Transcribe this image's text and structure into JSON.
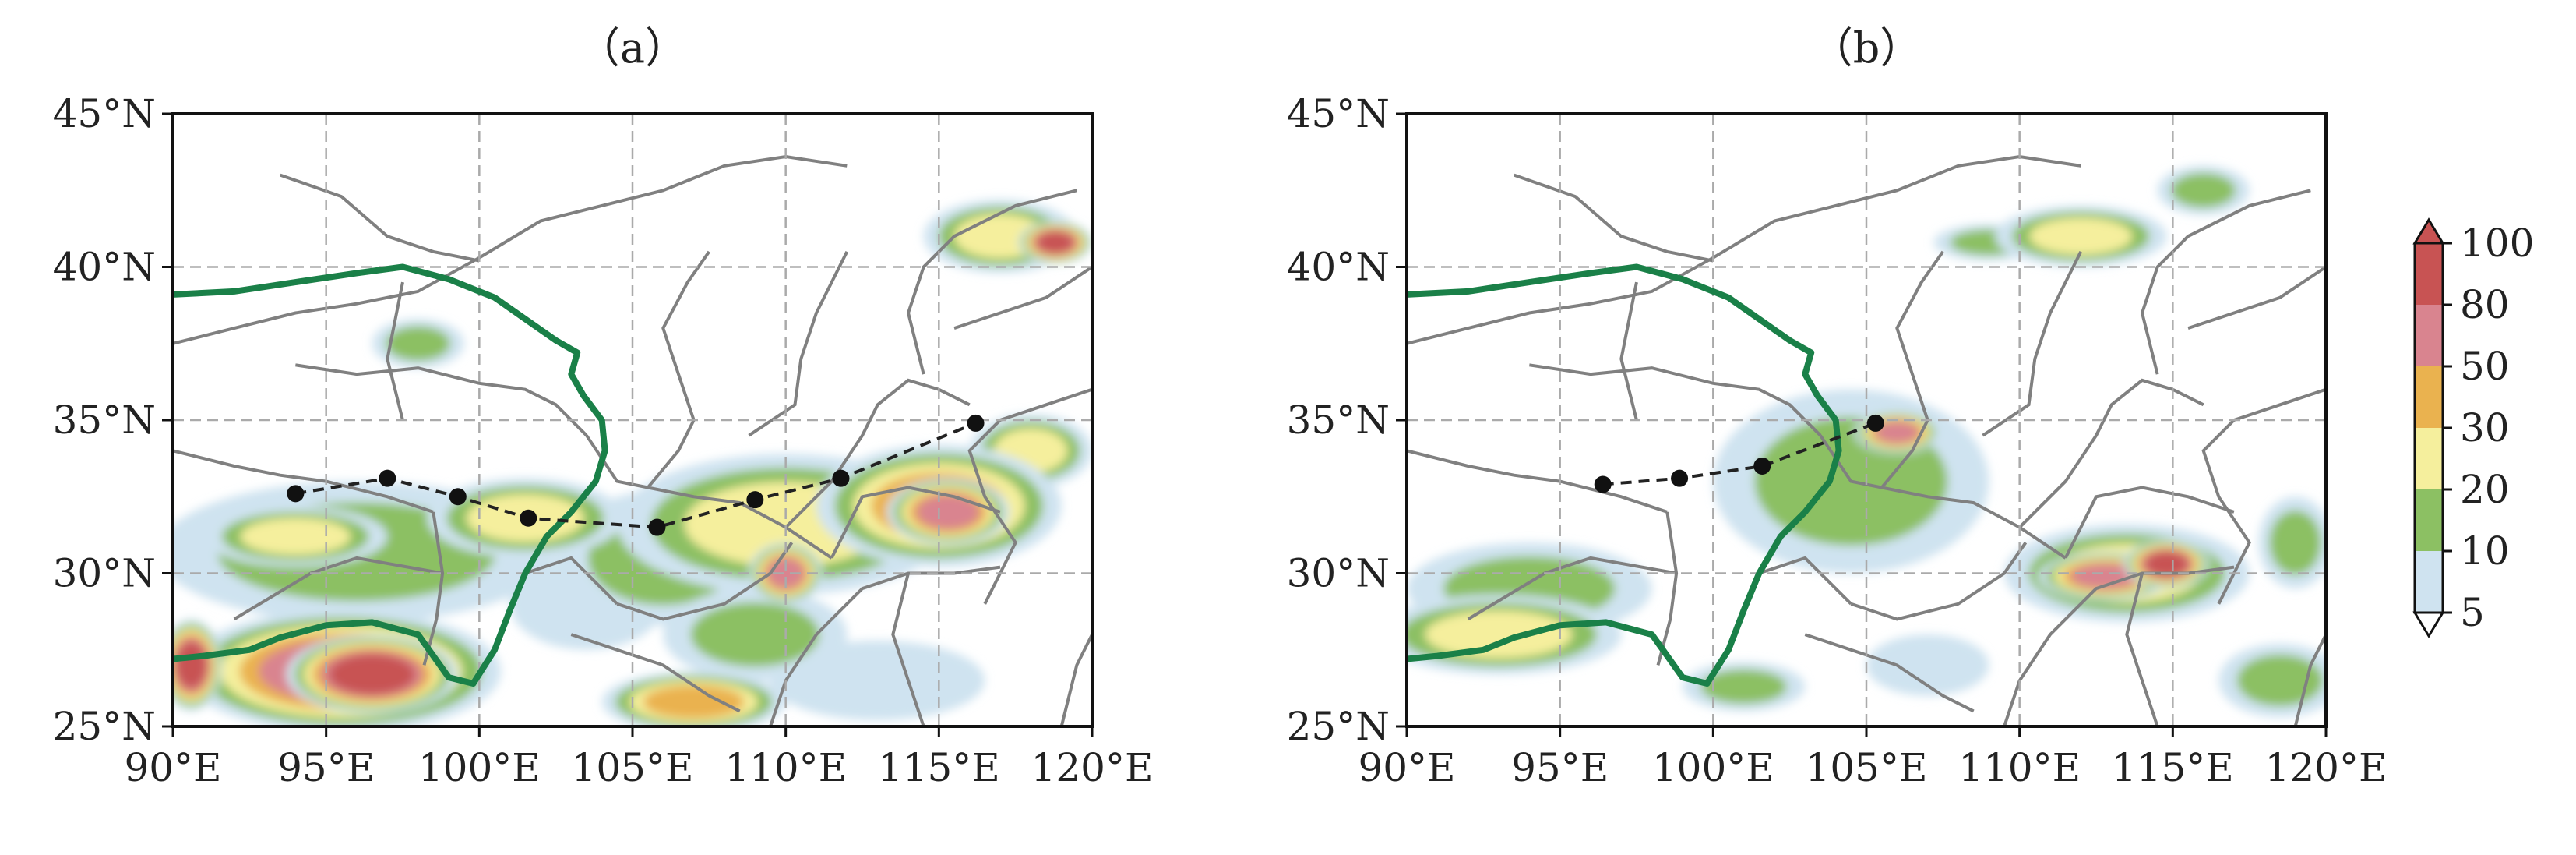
{
  "panels": [
    {
      "title": "（a）",
      "track_points": [
        [
          94.0,
          32.6
        ],
        [
          97.0,
          33.1
        ],
        [
          99.3,
          32.5
        ],
        [
          101.6,
          31.8
        ],
        [
          105.8,
          31.5
        ],
        [
          109.0,
          32.4
        ],
        [
          111.8,
          33.1
        ],
        [
          116.2,
          34.9
        ]
      ],
      "rain_blobs": [
        {
          "lon": 95.5,
          "lat": 26.8,
          "rx": 5.2,
          "ry": 2.0,
          "level": 5
        },
        {
          "lon": 96.5,
          "lat": 26.7,
          "rx": 2.8,
          "ry": 1.3,
          "level": 6
        },
        {
          "lon": 90.6,
          "lat": 27.0,
          "rx": 1.0,
          "ry": 1.5,
          "level": 6
        },
        {
          "lon": 96.0,
          "lat": 30.7,
          "rx": 6.5,
          "ry": 2.3,
          "level": 2
        },
        {
          "lon": 94.0,
          "lat": 31.2,
          "rx": 3.0,
          "ry": 1.0,
          "level": 3
        },
        {
          "lon": 101.5,
          "lat": 31.8,
          "rx": 3.2,
          "ry": 1.3,
          "level": 3
        },
        {
          "lon": 106.0,
          "lat": 30.5,
          "rx": 3.5,
          "ry": 2.2,
          "level": 2
        },
        {
          "lon": 110.0,
          "lat": 31.6,
          "rx": 5.5,
          "ry": 2.3,
          "level": 3
        },
        {
          "lon": 110.0,
          "lat": 30.0,
          "rx": 1.2,
          "ry": 1.0,
          "level": 5
        },
        {
          "lon": 115.0,
          "lat": 32.2,
          "rx": 4.0,
          "ry": 2.0,
          "level": 4
        },
        {
          "lon": 115.3,
          "lat": 32.0,
          "rx": 2.0,
          "ry": 1.1,
          "level": 5
        },
        {
          "lon": 109.0,
          "lat": 28.0,
          "rx": 3.0,
          "ry": 1.5,
          "level": 2
        },
        {
          "lon": 107.0,
          "lat": 25.8,
          "rx": 3.0,
          "ry": 1.0,
          "level": 4
        },
        {
          "lon": 117.0,
          "lat": 41.0,
          "rx": 2.5,
          "ry": 1.2,
          "level": 3
        },
        {
          "lon": 118.8,
          "lat": 40.8,
          "rx": 1.2,
          "ry": 0.7,
          "level": 6
        },
        {
          "lon": 98.0,
          "lat": 37.5,
          "rx": 1.5,
          "ry": 0.8,
          "level": 2
        },
        {
          "lon": 103.5,
          "lat": 29.0,
          "rx": 2.5,
          "ry": 1.5,
          "level": 1
        },
        {
          "lon": 113.0,
          "lat": 26.5,
          "rx": 3.5,
          "ry": 1.3,
          "level": 1
        },
        {
          "lon": 118.0,
          "lat": 34.0,
          "rx": 2.0,
          "ry": 1.2,
          "level": 3
        }
      ]
    },
    {
      "title": "（b）",
      "track_points": [
        [
          96.4,
          32.9
        ],
        [
          98.9,
          33.1
        ],
        [
          101.6,
          33.5
        ],
        [
          105.3,
          34.9
        ]
      ],
      "rain_blobs": [
        {
          "lon": 93.0,
          "lat": 28.0,
          "rx": 4.0,
          "ry": 1.3,
          "level": 3
        },
        {
          "lon": 94.0,
          "lat": 29.5,
          "rx": 4.0,
          "ry": 1.5,
          "level": 2
        },
        {
          "lon": 104.5,
          "lat": 33.0,
          "rx": 4.5,
          "ry": 3.0,
          "level": 2
        },
        {
          "lon": 106.0,
          "lat": 34.6,
          "rx": 1.4,
          "ry": 0.7,
          "level": 5
        },
        {
          "lon": 113.5,
          "lat": 30.0,
          "rx": 4.0,
          "ry": 1.6,
          "level": 3
        },
        {
          "lon": 112.8,
          "lat": 29.9,
          "rx": 2.2,
          "ry": 0.8,
          "level": 5
        },
        {
          "lon": 114.8,
          "lat": 30.3,
          "rx": 1.4,
          "ry": 0.8,
          "level": 6
        },
        {
          "lon": 112.0,
          "lat": 41.0,
          "rx": 2.8,
          "ry": 1.0,
          "level": 3
        },
        {
          "lon": 109.0,
          "lat": 40.8,
          "rx": 1.8,
          "ry": 0.6,
          "level": 2
        },
        {
          "lon": 116.0,
          "lat": 42.5,
          "rx": 1.5,
          "ry": 0.8,
          "level": 2
        },
        {
          "lon": 119.0,
          "lat": 31.0,
          "rx": 1.2,
          "ry": 1.5,
          "level": 2
        },
        {
          "lon": 107.0,
          "lat": 27.0,
          "rx": 2.0,
          "ry": 1.0,
          "level": 1
        },
        {
          "lon": 101.0,
          "lat": 26.3,
          "rx": 2.0,
          "ry": 0.8,
          "level": 2
        },
        {
          "lon": 118.5,
          "lat": 26.5,
          "rx": 2.0,
          "ry": 1.2,
          "level": 2
        }
      ]
    }
  ],
  "axes": {
    "lon_range": [
      90,
      120
    ],
    "lat_range": [
      25,
      45
    ],
    "lon_ticks": [
      "90°E",
      "95°E",
      "100°E",
      "105°E",
      "110°E",
      "115°E",
      "120°E"
    ],
    "lat_ticks": [
      "45°N",
      "40°N",
      "35°N",
      "30°N",
      "25°N"
    ],
    "grid": "dashed"
  },
  "colorbar": {
    "levels": [
      "5",
      "10",
      "20",
      "30",
      "50",
      "80",
      "100"
    ],
    "colors": [
      "#cfe3f0",
      "#8cc063",
      "#f5ef9d",
      "#eab24f",
      "#d9848f",
      "#c85353"
    ],
    "extend": "both"
  },
  "colors": {
    "plateau_boundary": "#1a8048",
    "provinces": "#808080",
    "track": "#222222",
    "grid": "#aaaaaa"
  },
  "legend": {
    "track_style": "dashed-black-with-dots",
    "plateau_style": "thick-green"
  }
}
